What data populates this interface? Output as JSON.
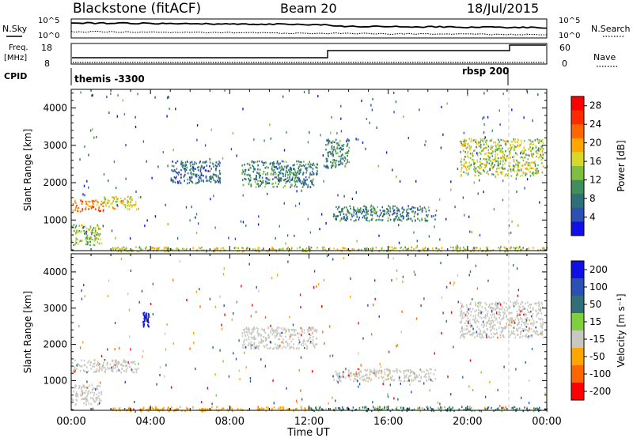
{
  "header": {
    "title": "Blackstone (fitACF)",
    "beam": "Beam 20",
    "date": "18/Jul/2015"
  },
  "top_panels": {
    "nsky": {
      "label": "N.Sky",
      "ymin_label": "10^0",
      "ymax_label": "10^5",
      "right_label": "N.Search"
    },
    "freq": {
      "label_line1": "Freq.",
      "label_line2": "[MHz]",
      "ticks_left": [
        "18",
        "8"
      ],
      "ticks_right": [
        "60",
        "0"
      ],
      "right_label": "Nave"
    },
    "cpid": {
      "label": "CPID",
      "segments": [
        {
          "name": "themis -3300",
          "start_hour": 0.0
        },
        {
          "name": "rbsp 200",
          "start_hour": 22.1
        }
      ]
    }
  },
  "colors": {
    "power_scale": [
      "#1010e6",
      "#2a4fb5",
      "#2f6f78",
      "#3f8f5a",
      "#7fbf3f",
      "#d8d82a",
      "#ffa500",
      "#ff6600",
      "#ff2a00",
      "#ff0000"
    ],
    "velocity_scale": [
      "#1010e6",
      "#2a4fb5",
      "#2f6f78",
      "#7fcf3f",
      "#c8c8c0",
      "#ffa500",
      "#ff6600",
      "#ff0000"
    ]
  },
  "chart_data": [
    {
      "type": "heatmap",
      "panel": "power",
      "xlabel": "",
      "ylabel": "Slant Range [km]",
      "xlim": [
        0,
        24
      ],
      "ylim": [
        180,
        4500
      ],
      "yticks": [
        1000,
        2000,
        3000,
        4000
      ],
      "colorbar": {
        "label": "Power [dB]",
        "ticks": [
          "4",
          "8",
          "12",
          "16",
          "20",
          "24",
          "28"
        ],
        "range": [
          0,
          30
        ]
      },
      "regions": [
        {
          "x0": 0.0,
          "x1": 1.6,
          "y0": 1250,
          "y1": 1550,
          "value": 22
        },
        {
          "x0": 1.6,
          "x1": 3.4,
          "y0": 1300,
          "y1": 1650,
          "value": 17
        },
        {
          "x0": 0.0,
          "x1": 1.5,
          "y0": 350,
          "y1": 900,
          "value": 14
        },
        {
          "x0": 8.6,
          "x1": 12.4,
          "y0": 1900,
          "y1": 2600,
          "value": 9
        },
        {
          "x0": 13.2,
          "x1": 18.4,
          "y0": 1000,
          "y1": 1400,
          "value": 8
        },
        {
          "x0": 12.8,
          "x1": 14.0,
          "y0": 2400,
          "y1": 3200,
          "value": 9
        },
        {
          "x0": 19.6,
          "x1": 23.8,
          "y0": 2200,
          "y1": 3200,
          "value": 15
        },
        {
          "x0": 5.0,
          "x1": 7.5,
          "y0": 2000,
          "y1": 2600,
          "value": 7
        },
        {
          "x0": 2.0,
          "x1": 24.0,
          "y0": 180,
          "y1": 300,
          "value": 16
        }
      ]
    },
    {
      "type": "heatmap",
      "panel": "velocity",
      "xlabel": "Time UT",
      "ylabel": "Slant Range [km]",
      "xlim": [
        0,
        24
      ],
      "xticks": [
        "00:00",
        "04:00",
        "08:00",
        "12:00",
        "16:00",
        "20:00",
        "00:00"
      ],
      "ylim": [
        180,
        4500
      ],
      "yticks": [
        1000,
        2000,
        3000,
        4000
      ],
      "colorbar": {
        "label": "Velocity [m s⁻¹]",
        "ticks": [
          "200",
          "100",
          "50",
          "15",
          "-15",
          "-50",
          "-100",
          "-200"
        ]
      },
      "regions": [
        {
          "x0": 0.0,
          "x1": 3.4,
          "y0": 1250,
          "y1": 1600,
          "value": 0
        },
        {
          "x0": 0.0,
          "x1": 1.5,
          "y0": 350,
          "y1": 900,
          "value": 0
        },
        {
          "x0": 8.6,
          "x1": 12.4,
          "y0": 1900,
          "y1": 2500,
          "value": 0
        },
        {
          "x0": 13.2,
          "x1": 18.4,
          "y0": 1000,
          "y1": 1350,
          "value": 0
        },
        {
          "x0": 19.6,
          "x1": 23.8,
          "y0": 2200,
          "y1": 3200,
          "value": 0
        },
        {
          "x0": 2.0,
          "x1": 12.0,
          "y0": 180,
          "y1": 300,
          "value": -40
        },
        {
          "x0": 12.0,
          "x1": 24.0,
          "y0": 180,
          "y1": 300,
          "value": 35
        },
        {
          "x0": 3.6,
          "x1": 3.9,
          "y0": 2500,
          "y1": 2900,
          "value": 180
        }
      ]
    }
  ]
}
